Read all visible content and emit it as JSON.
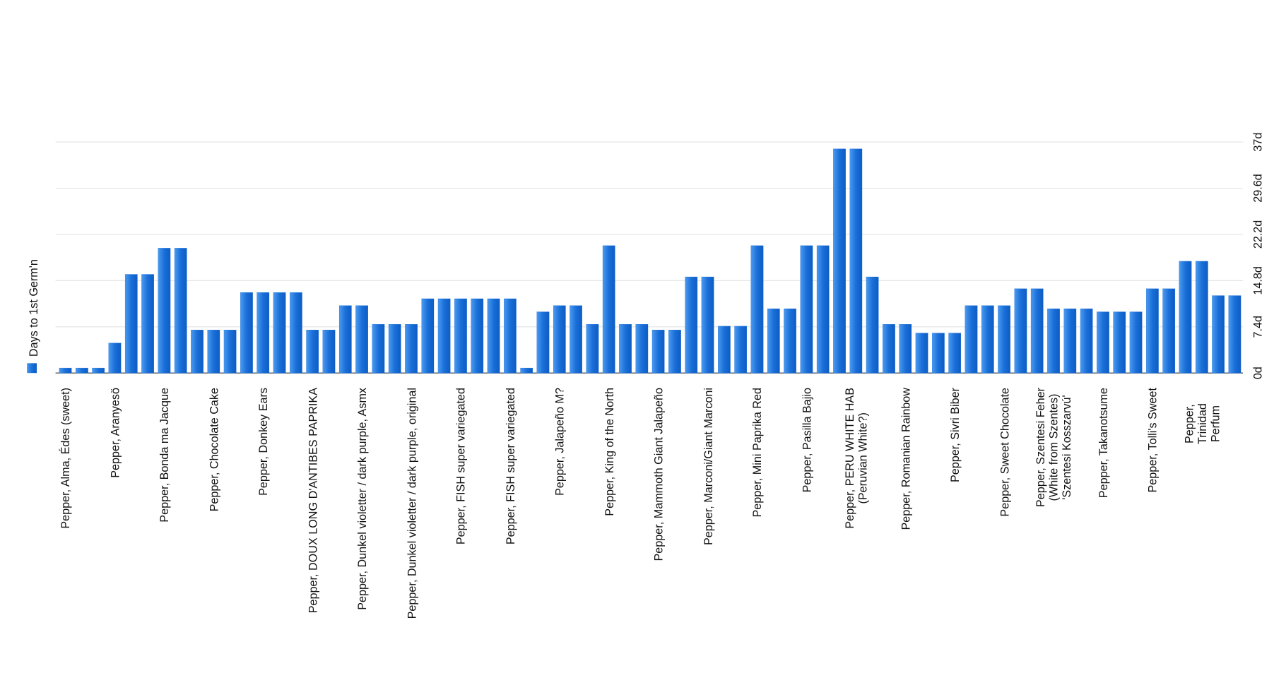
{
  "chart_data": {
    "type": "bar",
    "categories": [
      "Pepper, Alma, Édes (sweet)",
      null,
      null,
      "Pepper, Aranyesö",
      null,
      null,
      "Pepper, Bonda ma Jacque",
      null,
      null,
      "Pepper, Chocolate Cake",
      null,
      null,
      "Pepper, Donkey Ears",
      null,
      null,
      "Pepper, DOUX LONG D'ANTIBES PAPRIKA",
      null,
      null,
      "Pepper, Dunkel violetter / dark purple, Asmx",
      null,
      null,
      "Pepper, Dunkel violetter / dark purple, original",
      null,
      null,
      "Pepper, FISH super variegated",
      null,
      null,
      "Pepper, FISH super variegated",
      null,
      null,
      "Pepper, Jalapeño M?",
      null,
      null,
      "Pepper, King of the North",
      null,
      null,
      "Pepper, Mammoth Giant Jalapeño",
      null,
      null,
      "Pepper, Marconi/Giant Marconi",
      null,
      null,
      "Pepper, Mini Paprika Red",
      null,
      null,
      "Pepper, Pasilla Bajio",
      null,
      null,
      "Pepper, PERU WHITE HAB\n(Peruvian White?)",
      null,
      null,
      "Pepper, Romanian Rainbow",
      null,
      null,
      "Pepper, Sivri Biber",
      null,
      null,
      "Pepper, Sweet Chocolate",
      null,
      null,
      "Pepper, Szentesi Feher\n(White from Szentes)\n'Szentesi Kosszarvú'",
      null,
      null,
      "Pepper, Takanotsume",
      null,
      null,
      "Pepper, Tolli's Sweet",
      null,
      null,
      "Pepper, Trinidad Perfum",
      null,
      null
    ],
    "series": [
      {
        "name": "Days to 1st Germ'n",
        "color": "#1a6fd8",
        "values": [
          0.8,
          0.8,
          0.8,
          4.8,
          15.8,
          15.8,
          20,
          20,
          6.9,
          6.9,
          6.9,
          12.9,
          12.9,
          12.9,
          12.9,
          6.9,
          6.9,
          10.8,
          10.8,
          7.8,
          7.8,
          7.8,
          11.9,
          11.9,
          11.9,
          11.9,
          11.9,
          11.9,
          0.8,
          9.8,
          10.8,
          10.8,
          7.8,
          20.4,
          7.8,
          7.8,
          6.9,
          6.9,
          15.4,
          15.4,
          7.5,
          7.5,
          20.4,
          10.3,
          10.3,
          20.4,
          20.4,
          35.9,
          35.9,
          15.4,
          7.8,
          7.8,
          6.4,
          6.4,
          6.4,
          10.8,
          10.8,
          10.8,
          13.5,
          13.5,
          10.3,
          10.3,
          10.3,
          9.8,
          9.8,
          9.8,
          13.5,
          13.5,
          17.9,
          17.9,
          12.4,
          12.4
        ]
      }
    ],
    "ylim": [
      0,
      37
    ],
    "yticks": [
      {
        "value": 0,
        "label": "0d"
      },
      {
        "value": 7.4,
        "label": "7.4d"
      },
      {
        "value": 14.8,
        "label": "14.8d"
      },
      {
        "value": 22.2,
        "label": "22.2d"
      },
      {
        "value": 29.6,
        "label": "29.6d"
      },
      {
        "value": 37,
        "label": "37d"
      }
    ],
    "grid": true,
    "legend": "left"
  }
}
